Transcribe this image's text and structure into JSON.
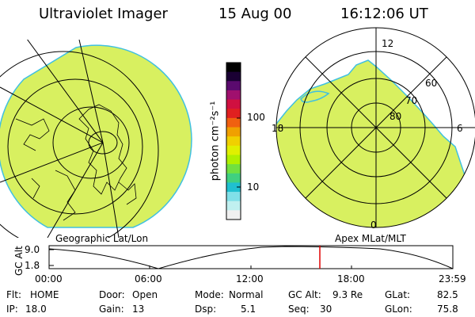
{
  "header": {
    "title": "Ultraviolet Imager",
    "date": "15 Aug 00",
    "time": "16:12:06 UT"
  },
  "colorbar": {
    "unit_label": "photon cm⁻²s⁻¹",
    "ticks": [
      "100",
      "10"
    ],
    "colors": [
      "#000000",
      "#1a0033",
      "#5a0a6e",
      "#a0106e",
      "#d01040",
      "#e02020",
      "#f06010",
      "#f0a000",
      "#f0d000",
      "#e0f000",
      "#b0f000",
      "#70e040",
      "#40d080",
      "#20c0d0",
      "#80e0e8",
      "#c0f0f0",
      "#f0f0f0"
    ]
  },
  "left_panel": {
    "label": "Geographic Lat/Lon",
    "fill_color": "#d8f060"
  },
  "right_panel": {
    "label": "Apex MLat/MLT",
    "mlt_labels": [
      "12",
      "18",
      "6",
      "0"
    ],
    "mlat_labels": [
      "60",
      "70",
      "80"
    ],
    "fill_color": "#d8f060"
  },
  "altitude_plot": {
    "ylabel": "GC Alt",
    "y_ticks": [
      "9.0",
      "1.8"
    ],
    "x_ticks": [
      "00:00",
      "06:00",
      "12:00",
      "18:00",
      "23:59"
    ],
    "current_marker_color": "#e00000"
  },
  "status": {
    "filter_label": "Flt:",
    "filter_value": "HOME",
    "ip_label": "IP:",
    "ip_value": "18.0",
    "door_label": "Door:",
    "door_value": "Open",
    "gain_label": "Gain:",
    "gain_value": "13",
    "mode_label": "Mode:",
    "mode_value": "Normal",
    "dsp_label": "Dsp:",
    "dsp_value": "5.1",
    "gcalt_label": "GC Alt:",
    "gcalt_value": "9.3 Re",
    "seq_label": "Seq:",
    "seq_value": "30",
    "glat_label": "GLat:",
    "glat_value": "82.5",
    "glon_label": "GLon:",
    "glon_value": "75.8"
  }
}
